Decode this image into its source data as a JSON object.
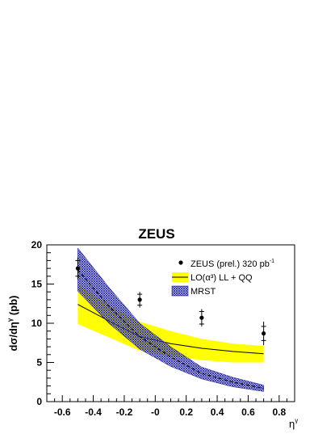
{
  "chart_data": {
    "type": "line",
    "title": "ZEUS",
    "xlabel": {
      "base": "η",
      "sup": "γ"
    },
    "ylabel": {
      "pre": "dσ/dη",
      "sup": "γ",
      "post": " (pb)"
    },
    "xlim": [
      -0.7,
      0.9
    ],
    "ylim": [
      0,
      20
    ],
    "x_ticks": [
      -0.6,
      -0.4,
      -0.2,
      0,
      0.2,
      0.4,
      0.6,
      0.8
    ],
    "x_tick_labels": [
      "-0.6",
      "-0.4",
      "-0.2",
      "-0",
      "0.2",
      "0.4",
      "0.6",
      "0.8"
    ],
    "y_ticks": [
      0,
      5,
      10,
      15,
      20
    ],
    "y_tick_labels": [
      "0",
      "5",
      "10",
      "15",
      "20"
    ],
    "grid": false,
    "legend_position": "top-right",
    "legend": [
      {
        "key": "data",
        "label_pre": "ZEUS (prel.) 320 pb",
        "label_sup": "-1"
      },
      {
        "key": "lo",
        "label": "LO(α³) LL + QQ"
      },
      {
        "key": "mrst",
        "label": "MRST"
      }
    ],
    "series": [
      {
        "name": "ZEUS (prel.) 320 pb-1",
        "kind": "points",
        "x": [
          -0.5,
          -0.1,
          0.3,
          0.7
        ],
        "y": [
          17.0,
          13.0,
          10.7,
          8.7
        ],
        "stat_err": [
          1.0,
          0.7,
          0.8,
          0.9
        ],
        "total_err": [
          1.4,
          1.0,
          1.1,
          1.5
        ]
      },
      {
        "name": "LO(α³) LL + QQ",
        "kind": "line_band",
        "x": [
          -0.5,
          -0.3,
          -0.1,
          0.1,
          0.3,
          0.5,
          0.7
        ],
        "y": [
          12.4,
          10.3,
          8.3,
          7.4,
          6.8,
          6.4,
          6.1
        ],
        "y_low": [
          9.9,
          8.2,
          6.5,
          5.8,
          5.3,
          5.0,
          5.0
        ],
        "y_high": [
          15.0,
          12.3,
          10.2,
          9.0,
          8.0,
          7.4,
          7.1
        ],
        "color": "#ffff00"
      },
      {
        "name": "MRST",
        "kind": "dashed_band",
        "x": [
          -0.5,
          -0.3,
          -0.1,
          0.1,
          0.3,
          0.5,
          0.7
        ],
        "y": [
          16.8,
          12.2,
          8.3,
          5.7,
          3.6,
          2.5,
          1.7
        ],
        "y_low": [
          14.1,
          10.0,
          6.7,
          4.5,
          2.9,
          1.9,
          1.3
        ],
        "y_high": [
          19.6,
          14.6,
          10.0,
          7.0,
          4.4,
          3.1,
          2.1
        ],
        "color": "#1a1aa0"
      }
    ]
  }
}
